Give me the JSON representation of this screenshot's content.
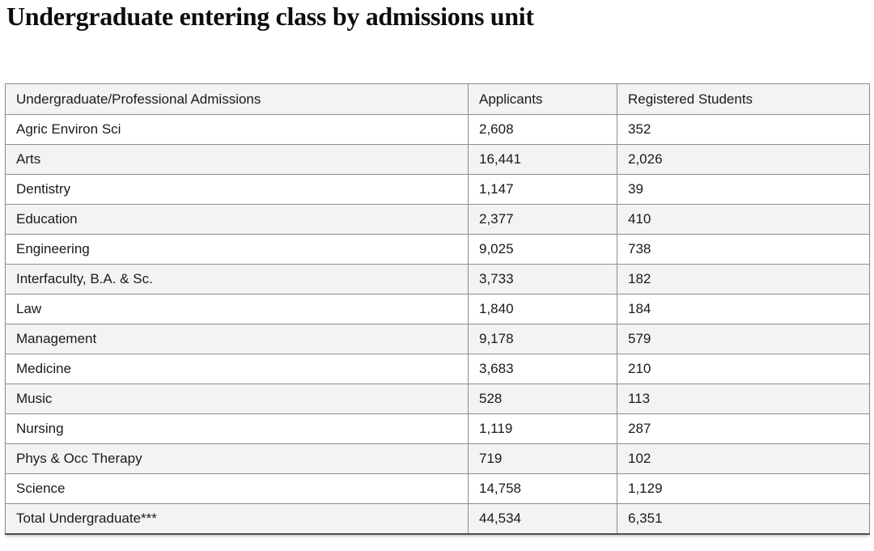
{
  "page": {
    "title": "Undergraduate entering class by admissions unit"
  },
  "table": {
    "headers": {
      "unit": "Undergraduate/Professional Admissions",
      "applicants": "Applicants",
      "registered": "Registered Students"
    },
    "rows": [
      {
        "unit": "Agric Environ Sci",
        "applicants": "2,608",
        "registered": "352"
      },
      {
        "unit": "Arts",
        "applicants": "16,441",
        "registered": "2,026"
      },
      {
        "unit": "Dentistry",
        "applicants": "1,147",
        "registered": "39"
      },
      {
        "unit": "Education",
        "applicants": "2,377",
        "registered": "410"
      },
      {
        "unit": "Engineering",
        "applicants": "9,025",
        "registered": "738"
      },
      {
        "unit": "Interfaculty, B.A. & Sc.",
        "applicants": "3,733",
        "registered": "182"
      },
      {
        "unit": "Law",
        "applicants": "1,840",
        "registered": "184"
      },
      {
        "unit": "Management",
        "applicants": "9,178",
        "registered": "579"
      },
      {
        "unit": "Medicine",
        "applicants": "3,683",
        "registered": "210"
      },
      {
        "unit": "Music",
        "applicants": "528",
        "registered": "113"
      },
      {
        "unit": "Nursing",
        "applicants": "1,119",
        "registered": "287"
      },
      {
        "unit": "Phys & Occ Therapy",
        "applicants": "719",
        "registered": "102"
      },
      {
        "unit": "Science",
        "applicants": "14,758",
        "registered": "1,129"
      },
      {
        "unit": "Total Undergraduate***",
        "applicants": "44,534",
        "registered": "6,351"
      }
    ]
  },
  "colors": {
    "header_bg": "#f3f3f4",
    "stripe_bg": "#f3f3f4",
    "border": "#8e8e8e",
    "bottom_border": "#4d4d4d",
    "text": "#1a1a1a",
    "title_color": "#0d0d0d"
  },
  "chart_data": {
    "type": "table",
    "title": "Undergraduate entering class by admissions unit",
    "columns": [
      "Undergraduate/Professional Admissions",
      "Applicants",
      "Registered Students"
    ],
    "rows": [
      [
        "Agric Environ Sci",
        2608,
        352
      ],
      [
        "Arts",
        16441,
        2026
      ],
      [
        "Dentistry",
        1147,
        39
      ],
      [
        "Education",
        2377,
        410
      ],
      [
        "Engineering",
        9025,
        738
      ],
      [
        "Interfaculty, B.A. & Sc.",
        3733,
        182
      ],
      [
        "Law",
        1840,
        184
      ],
      [
        "Management",
        9178,
        579
      ],
      [
        "Medicine",
        3683,
        210
      ],
      [
        "Music",
        528,
        113
      ],
      [
        "Nursing",
        1119,
        287
      ],
      [
        "Phys & Occ Therapy",
        719,
        102
      ],
      [
        "Science",
        14758,
        1129
      ],
      [
        "Total Undergraduate***",
        44534,
        6351
      ]
    ],
    "layout": {
      "striped_rows": true,
      "grid": true,
      "header_background": "#f3f3f4"
    }
  }
}
